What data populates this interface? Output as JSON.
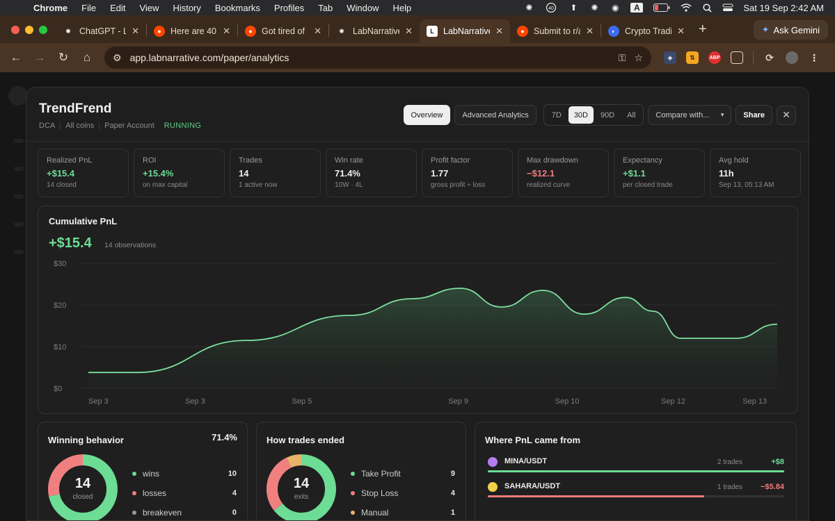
{
  "menubar": {
    "app": "Chrome",
    "items": [
      "File",
      "Edit",
      "View",
      "History",
      "Bookmarks",
      "Profiles",
      "Tab",
      "Window",
      "Help"
    ],
    "badge": "40",
    "clock": "Sat 19 Sep  2:42 AM",
    "input_source": "A"
  },
  "tabs": [
    {
      "title": "ChatGPT - L",
      "favicon": "chatgpt-icon",
      "fav_color": "#ffffff",
      "fav_glyph": "✺"
    },
    {
      "title": "Here are 40",
      "favicon": "reddit-icon",
      "fav_color": "#ff4500",
      "fav_glyph": "●"
    },
    {
      "title": "Got tired of",
      "favicon": "reddit-icon",
      "fav_color": "#ff4500",
      "fav_glyph": "●"
    },
    {
      "title": "LabNarrative",
      "favicon": "chatgpt-icon",
      "fav_color": "#ffffff",
      "fav_glyph": "✺"
    },
    {
      "title": "LabNarrative",
      "favicon": "labnarrative-icon",
      "fav_color": "#ffffff",
      "fav_glyph": "L",
      "active": true
    },
    {
      "title": "Submit to r/a",
      "favicon": "reddit-icon",
      "fav_color": "#ff4500",
      "fav_glyph": "●"
    },
    {
      "title": "Crypto Tradi",
      "favicon": "crypto-site-icon",
      "fav_color": "#3b6cf0",
      "fav_glyph": "◐"
    }
  ],
  "gemini_label": "Ask Gemini",
  "url": "app.labnarrative.com/paper/analytics",
  "header": {
    "title": "TrendFrend",
    "tags": [
      "DCA",
      "All coins",
      "Paper Account"
    ],
    "status": "RUNNING",
    "buttons": {
      "overview": "Overview",
      "advanced": "Advanced Analytics",
      "compare": "Compare with...",
      "share": "Share"
    },
    "ranges": [
      "7D",
      "30D",
      "90D",
      "All"
    ],
    "active_range": "30D"
  },
  "stats": [
    {
      "label": "Realized PnL",
      "value": "+$15.4",
      "sub": "14 closed",
      "tone": "pos"
    },
    {
      "label": "ROI",
      "value": "+15.4%",
      "sub": "on max capital",
      "tone": "pos"
    },
    {
      "label": "Trades",
      "value": "14",
      "sub": "1 active now",
      "tone": ""
    },
    {
      "label": "Win rate",
      "value": "71.4%",
      "sub": "10W · 4L",
      "tone": ""
    },
    {
      "label": "Profit factor",
      "value": "1.77",
      "sub": "gross profit ÷ loss",
      "tone": ""
    },
    {
      "label": "Max drawdown",
      "value": "−$12.1",
      "sub": "realized curve",
      "tone": "neg"
    },
    {
      "label": "Expectancy",
      "value": "+$1.1",
      "sub": "per closed trade",
      "tone": "pos"
    },
    {
      "label": "Avg hold",
      "value": "11h",
      "sub": "Sep 13, 05:13 AM",
      "tone": ""
    }
  ],
  "cumulative": {
    "title": "Cumulative PnL",
    "value": "+$15.4",
    "observations": "14 observations",
    "line_color": "#7ee0a0"
  },
  "chart_data": {
    "type": "area",
    "yticks": [
      "$30",
      "$20",
      "$10",
      "$0"
    ],
    "xticks": [
      "Sep 3",
      "Sep 3",
      "Sep 5",
      "Sep 9",
      "Sep 10",
      "Sep 12",
      "Sep 13"
    ],
    "ylim": [
      0,
      30
    ],
    "x": [
      0,
      0.07,
      0.23,
      0.38,
      0.47,
      0.54,
      0.6,
      0.66,
      0.72,
      0.78,
      0.82,
      0.86,
      0.94,
      1.0
    ],
    "values": [
      3.8,
      3.8,
      11.5,
      17.5,
      21.5,
      24.0,
      19.5,
      23.5,
      17.8,
      21.8,
      18.5,
      12.0,
      12.0,
      15.4
    ],
    "grid": true
  },
  "winning": {
    "title": "Winning behavior",
    "pct": "71.4%",
    "center_num": "14",
    "center_lbl": "closed",
    "legend": [
      {
        "name": "wins",
        "count": "10",
        "color": "#6ddc94"
      },
      {
        "name": "losses",
        "count": "4",
        "color": "#f08080"
      },
      {
        "name": "breakeven",
        "count": "0",
        "color": "#9a9a9a"
      }
    ],
    "donut": [
      {
        "value": 10,
        "color": "#6ddc94"
      },
      {
        "value": 4,
        "color": "#f08080"
      }
    ]
  },
  "ended": {
    "title": "How trades ended",
    "center_num": "14",
    "center_lbl": "exits",
    "legend": [
      {
        "name": "Take Profit",
        "count": "9",
        "color": "#6ddc94"
      },
      {
        "name": "Stop Loss",
        "count": "4",
        "color": "#f08080"
      },
      {
        "name": "Manual",
        "count": "1",
        "color": "#e8b46a"
      }
    ],
    "donut": [
      {
        "value": 9,
        "color": "#6ddc94"
      },
      {
        "value": 4,
        "color": "#f08080"
      },
      {
        "value": 1,
        "color": "#e8b46a"
      }
    ]
  },
  "pnl_sources": {
    "title": "Where PnL came from",
    "rows": [
      {
        "pair": "MINA/USDT",
        "trades": "2 trades",
        "amount": "+$8",
        "tone": "pos",
        "share": 1.0,
        "coin_color": "#b57cf0"
      },
      {
        "pair": "SAHARA/USDT",
        "trades": "1 trades",
        "amount": "−$5.84",
        "tone": "neg",
        "share": 0.73,
        "coin_color": "#f3d04a"
      }
    ]
  }
}
